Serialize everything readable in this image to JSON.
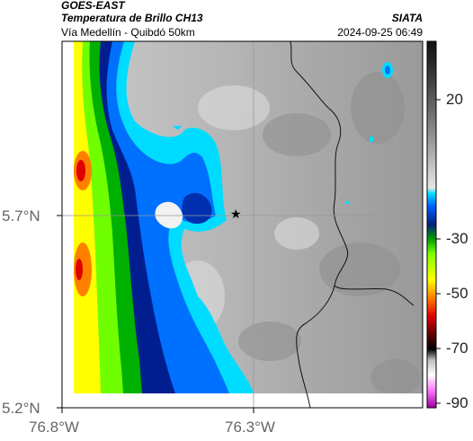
{
  "header": {
    "satellite": "GOES-EAST",
    "product": "Temperatura de Brillo CH13",
    "region": "Vía Medellín - Quibdó 50km",
    "agency": "SIATA",
    "datetime": "2024-09-25 06:49"
  },
  "axes": {
    "lat_ticks": [
      "5.7°N",
      "5.2°N"
    ],
    "lon_ticks": [
      "76.8°W",
      "76.3°W"
    ]
  },
  "marker": {
    "symbol": "★",
    "name": "location-marker"
  },
  "colorbar": {
    "labels": [
      "20",
      "-30",
      "-50",
      "-70",
      "-90"
    ]
  },
  "colors": {
    "frame": "#000000",
    "gridline": "#999999",
    "border_line": "#111111"
  }
}
